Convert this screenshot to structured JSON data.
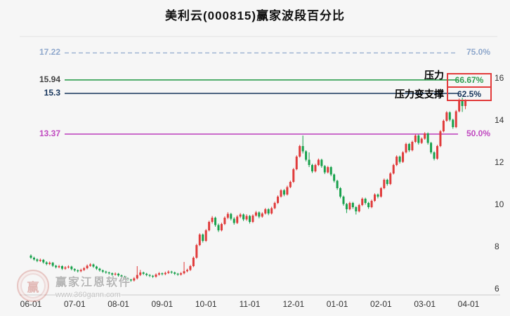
{
  "title": "美利云(000815)赢家波段百分比",
  "annotations": {
    "pressure": "压力",
    "pressure_becomes_support": "压力变支撑"
  },
  "watermark": {
    "logo_char": "赢",
    "brand": "赢家江恩软件",
    "url": "www.360gann.com"
  },
  "colors": {
    "up": "#e03b3b",
    "down": "#18a14c",
    "box_border": "#e23b3b",
    "axis_text": "#333333"
  },
  "chart_data": {
    "type": "candlestick",
    "title": "美利云(000815)赢家波段百分比",
    "symbol": "美利云",
    "code": "000815",
    "xlabel": "",
    "ylabel": "",
    "ylim": [
      5.7,
      18.0
    ],
    "y_ticks": [
      16,
      14,
      12,
      10,
      8,
      6
    ],
    "x_ticks": [
      "06-01",
      "07-01",
      "08-01",
      "09-01",
      "10-01",
      "11-01",
      "12-01",
      "01-01",
      "02-01",
      "03-01",
      "04-01"
    ],
    "x_tick_indices": [
      0,
      14,
      28,
      42,
      56,
      70,
      84,
      98,
      112,
      126,
      140
    ],
    "levels": [
      {
        "price": 17.22,
        "percent": "75.0%",
        "style": "dashed",
        "boxed": false,
        "color": "#8fa8cc"
      },
      {
        "price": 15.94,
        "percent": "66.67%",
        "style": "solid",
        "boxed": true,
        "color": "#2f9e4f",
        "price_color": "#444444",
        "annotation": "压力"
      },
      {
        "price": 15.3,
        "percent": "62.5%",
        "style": "solid",
        "boxed": true,
        "color": "#16355c",
        "annotation": "压力变支撑"
      },
      {
        "price": 13.37,
        "percent": "50.0%",
        "style": "solid",
        "boxed": false,
        "color": "#c04ac0"
      }
    ],
    "candles": [
      [
        7.6,
        7.66,
        7.44,
        7.5
      ],
      [
        7.5,
        7.55,
        7.36,
        7.42
      ],
      [
        7.42,
        7.47,
        7.29,
        7.35
      ],
      [
        7.35,
        7.46,
        7.3,
        7.4
      ],
      [
        7.4,
        7.44,
        7.22,
        7.28
      ],
      [
        7.28,
        7.33,
        7.14,
        7.2
      ],
      [
        7.2,
        7.32,
        7.15,
        7.26
      ],
      [
        7.26,
        7.3,
        7.06,
        7.12
      ],
      [
        7.12,
        7.16,
        6.99,
        7.05
      ],
      [
        7.05,
        7.16,
        7.0,
        7.1
      ],
      [
        7.1,
        7.14,
        6.92,
        6.98
      ],
      [
        6.98,
        7.1,
        6.93,
        7.04
      ],
      [
        7.04,
        7.14,
        6.99,
        7.08
      ],
      [
        7.08,
        7.12,
        6.9,
        6.96
      ],
      [
        6.96,
        7.0,
        6.84,
        6.9
      ],
      [
        6.9,
        6.95,
        6.8,
        6.86
      ],
      [
        6.86,
        6.98,
        6.81,
        6.92
      ],
      [
        6.92,
        7.06,
        6.87,
        7.0
      ],
      [
        7.0,
        7.18,
        6.95,
        7.12
      ],
      [
        7.12,
        7.24,
        7.07,
        7.18
      ],
      [
        7.18,
        7.22,
        7.02,
        7.08
      ],
      [
        7.08,
        7.12,
        6.92,
        6.98
      ],
      [
        6.98,
        7.02,
        6.84,
        6.9
      ],
      [
        6.9,
        6.94,
        6.78,
        6.84
      ],
      [
        6.84,
        6.88,
        6.74,
        6.8
      ],
      [
        6.8,
        6.84,
        6.7,
        6.76
      ],
      [
        6.76,
        6.8,
        6.64,
        6.7
      ],
      [
        6.7,
        6.8,
        6.65,
        6.74
      ],
      [
        6.74,
        6.78,
        6.6,
        6.66
      ],
      [
        6.66,
        6.7,
        6.54,
        6.6
      ],
      [
        6.6,
        6.64,
        6.46,
        6.52
      ],
      [
        6.52,
        6.56,
        6.4,
        6.46
      ],
      [
        6.46,
        6.5,
        6.36,
        6.42
      ],
      [
        6.42,
        6.58,
        6.37,
        6.52
      ],
      [
        6.52,
        7.1,
        6.47,
        6.68
      ],
      [
        6.68,
        6.92,
        6.63,
        6.8
      ],
      [
        6.8,
        6.84,
        6.68,
        6.74
      ],
      [
        6.74,
        6.78,
        6.62,
        6.68
      ],
      [
        6.68,
        6.72,
        6.58,
        6.64
      ],
      [
        6.64,
        6.68,
        6.54,
        6.6
      ],
      [
        6.6,
        6.76,
        6.55,
        6.7
      ],
      [
        6.7,
        6.82,
        6.65,
        6.76
      ],
      [
        6.76,
        6.8,
        6.66,
        6.72
      ],
      [
        6.72,
        6.84,
        6.67,
        6.78
      ],
      [
        6.78,
        6.9,
        6.73,
        6.84
      ],
      [
        6.84,
        6.88,
        6.74,
        6.8
      ],
      [
        6.8,
        6.84,
        6.68,
        6.74
      ],
      [
        6.74,
        6.78,
        6.64,
        6.7
      ],
      [
        6.7,
        6.82,
        6.65,
        6.76
      ],
      [
        6.76,
        7.3,
        6.71,
        6.86
      ],
      [
        6.86,
        6.98,
        6.81,
        6.92
      ],
      [
        6.92,
        7.16,
        6.87,
        7.1
      ],
      [
        7.1,
        7.56,
        7.05,
        7.5
      ],
      [
        7.5,
        8.16,
        7.45,
        8.1
      ],
      [
        8.1,
        8.66,
        8.05,
        8.6
      ],
      [
        8.6,
        8.65,
        8.22,
        8.3
      ],
      [
        8.3,
        8.86,
        8.25,
        8.8
      ],
      [
        8.8,
        9.26,
        8.75,
        9.2
      ],
      [
        9.2,
        9.48,
        9.12,
        9.4
      ],
      [
        9.4,
        9.45,
        8.97,
        9.05
      ],
      [
        9.05,
        9.12,
        8.72,
        8.8
      ],
      [
        8.8,
        9.16,
        8.75,
        9.1
      ],
      [
        9.1,
        9.46,
        9.05,
        9.4
      ],
      [
        9.4,
        9.66,
        9.33,
        9.58
      ],
      [
        9.58,
        9.63,
        9.27,
        9.35
      ],
      [
        9.35,
        9.42,
        9.07,
        9.15
      ],
      [
        9.15,
        9.52,
        9.1,
        9.45
      ],
      [
        9.45,
        9.62,
        9.38,
        9.55
      ],
      [
        9.55,
        9.6,
        9.24,
        9.32
      ],
      [
        9.32,
        9.56,
        9.25,
        9.48
      ],
      [
        9.48,
        9.53,
        9.12,
        9.2
      ],
      [
        9.2,
        9.56,
        9.15,
        9.5
      ],
      [
        9.5,
        9.72,
        9.45,
        9.65
      ],
      [
        9.65,
        9.7,
        9.37,
        9.45
      ],
      [
        9.45,
        9.66,
        9.4,
        9.6
      ],
      [
        9.6,
        9.86,
        9.55,
        9.8
      ],
      [
        9.8,
        9.85,
        9.52,
        9.6
      ],
      [
        9.6,
        9.92,
        9.55,
        9.85
      ],
      [
        9.85,
        10.16,
        9.8,
        10.1
      ],
      [
        10.1,
        10.46,
        10.05,
        10.4
      ],
      [
        10.4,
        10.76,
        10.35,
        10.7
      ],
      [
        10.7,
        10.76,
        10.42,
        10.5
      ],
      [
        10.5,
        10.92,
        10.45,
        10.85
      ],
      [
        10.85,
        11.16,
        10.8,
        11.1
      ],
      [
        11.1,
        11.76,
        11.05,
        11.7
      ],
      [
        11.7,
        12.36,
        11.65,
        12.3
      ],
      [
        12.3,
        12.86,
        12.25,
        12.8
      ],
      [
        12.8,
        13.3,
        12.45,
        12.55
      ],
      [
        12.55,
        12.6,
        12.07,
        12.15
      ],
      [
        12.15,
        12.5,
        11.8,
        11.9
      ],
      [
        11.9,
        11.96,
        11.52,
        11.6
      ],
      [
        11.6,
        11.96,
        11.55,
        11.9
      ],
      [
        11.9,
        12.21,
        11.85,
        12.15
      ],
      [
        12.15,
        12.2,
        11.77,
        11.85
      ],
      [
        11.85,
        11.9,
        11.47,
        11.55
      ],
      [
        11.55,
        11.86,
        11.5,
        11.8
      ],
      [
        11.8,
        11.85,
        11.37,
        11.45
      ],
      [
        11.45,
        11.5,
        11.07,
        11.15
      ],
      [
        11.15,
        11.2,
        10.72,
        10.8
      ],
      [
        10.8,
        10.85,
        10.32,
        10.4
      ],
      [
        10.4,
        10.45,
        9.97,
        10.05
      ],
      [
        10.05,
        10.1,
        9.62,
        9.8
      ],
      [
        9.8,
        10.16,
        9.75,
        10.1
      ],
      [
        10.1,
        10.15,
        9.82,
        9.9
      ],
      [
        9.9,
        9.95,
        9.55,
        9.7
      ],
      [
        9.7,
        10.06,
        9.65,
        10.0
      ],
      [
        10.0,
        10.36,
        9.95,
        10.3
      ],
      [
        10.3,
        10.35,
        10.02,
        10.1
      ],
      [
        10.1,
        10.15,
        9.82,
        9.9
      ],
      [
        9.9,
        10.26,
        9.85,
        10.2
      ],
      [
        10.2,
        10.56,
        10.15,
        10.5
      ],
      [
        10.5,
        10.55,
        10.32,
        10.4
      ],
      [
        10.4,
        10.86,
        10.35,
        10.8
      ],
      [
        10.8,
        11.26,
        10.75,
        11.2
      ],
      [
        11.2,
        11.25,
        10.92,
        11.0
      ],
      [
        11.0,
        11.56,
        10.95,
        11.5
      ],
      [
        11.5,
        11.96,
        11.45,
        11.9
      ],
      [
        11.9,
        12.36,
        11.85,
        12.3
      ],
      [
        12.3,
        12.35,
        11.97,
        12.05
      ],
      [
        12.05,
        12.56,
        12.0,
        12.5
      ],
      [
        12.5,
        12.96,
        12.45,
        12.9
      ],
      [
        12.9,
        12.95,
        12.52,
        12.6
      ],
      [
        12.6,
        13.06,
        12.55,
        13.0
      ],
      [
        13.0,
        13.36,
        12.95,
        13.3
      ],
      [
        13.3,
        13.35,
        12.87,
        12.95
      ],
      [
        12.95,
        13.21,
        12.9,
        13.15
      ],
      [
        13.15,
        13.46,
        13.1,
        13.4
      ],
      [
        13.4,
        13.45,
        12.87,
        12.95
      ],
      [
        12.95,
        13.0,
        12.42,
        12.5
      ],
      [
        12.5,
        12.55,
        12.12,
        12.2
      ],
      [
        12.2,
        12.86,
        12.15,
        12.8
      ],
      [
        12.8,
        13.56,
        12.75,
        13.5
      ],
      [
        13.5,
        14.06,
        13.45,
        14.0
      ],
      [
        14.0,
        14.46,
        13.95,
        14.4
      ],
      [
        14.4,
        14.45,
        13.97,
        14.05
      ],
      [
        14.05,
        14.1,
        13.62,
        13.7
      ],
      [
        13.7,
        14.51,
        13.65,
        14.45
      ],
      [
        14.45,
        15.06,
        14.4,
        14.95
      ],
      [
        14.95,
        15.1,
        14.42,
        14.7
      ],
      [
        14.7,
        15.02,
        14.55,
        14.95
      ]
    ]
  }
}
